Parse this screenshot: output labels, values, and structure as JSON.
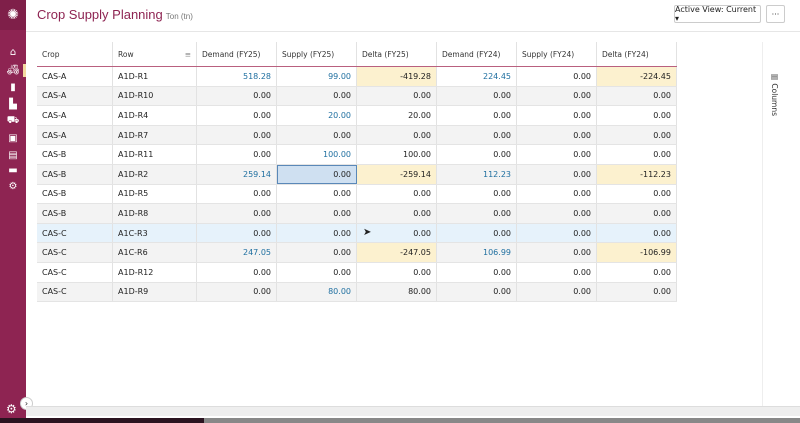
{
  "header": {
    "title": "Crop Supply Planning",
    "unit": "Ton (tn)",
    "view_button": "Active View: Current ▾",
    "more_button": "···"
  },
  "sidebar": {
    "icons": [
      "logo-icon",
      "home-icon",
      "tractor-icon",
      "silo-icon",
      "factory-icon",
      "hand-truck-icon",
      "wallet-icon",
      "clipboard-icon",
      "toolbox-icon",
      "gear-icon"
    ]
  },
  "columns_panel": "▤ Columns",
  "grid": {
    "headers": [
      "Crop",
      "Row",
      "Demand (FY25)",
      "Supply (FY25)",
      "Delta (FY25)",
      "Demand (FY24)",
      "Supply (FY24)",
      "Delta (FY24)"
    ],
    "rows": [
      [
        "CAS-A",
        "A1D-R1",
        "518.28",
        "99.00",
        "-419.28",
        "224.45",
        "0.00",
        "-224.45"
      ],
      [
        "CAS-A",
        "A1D-R10",
        "0.00",
        "0.00",
        "0.00",
        "0.00",
        "0.00",
        "0.00"
      ],
      [
        "CAS-A",
        "A1D-R4",
        "0.00",
        "20.00",
        "20.00",
        "0.00",
        "0.00",
        "0.00"
      ],
      [
        "CAS-A",
        "A1D-R7",
        "0.00",
        "0.00",
        "0.00",
        "0.00",
        "0.00",
        "0.00"
      ],
      [
        "CAS-B",
        "A1D-R11",
        "0.00",
        "100.00",
        "100.00",
        "0.00",
        "0.00",
        "0.00"
      ],
      [
        "CAS-B",
        "A1D-R2",
        "259.14",
        "0.00",
        "-259.14",
        "112.23",
        "0.00",
        "-112.23"
      ],
      [
        "CAS-B",
        "A1D-R5",
        "0.00",
        "0.00",
        "0.00",
        "0.00",
        "0.00",
        "0.00"
      ],
      [
        "CAS-B",
        "A1D-R8",
        "0.00",
        "0.00",
        "0.00",
        "0.00",
        "0.00",
        "0.00"
      ],
      [
        "CAS-C",
        "A1C-R3",
        "0.00",
        "0.00",
        "0.00",
        "0.00",
        "0.00",
        "0.00"
      ],
      [
        "CAS-C",
        "A1C-R6",
        "247.05",
        "0.00",
        "-247.05",
        "106.99",
        "0.00",
        "-106.99"
      ],
      [
        "CAS-C",
        "A1D-R12",
        "0.00",
        "0.00",
        "0.00",
        "0.00",
        "0.00",
        "0.00"
      ],
      [
        "CAS-C",
        "A1D-R9",
        "0.00",
        "80.00",
        "80.00",
        "0.00",
        "0.00",
        "0.00"
      ]
    ],
    "selected_row": 5,
    "selected_col": 3,
    "hovered_row": 8,
    "colors": {
      "accent": "#8e2452",
      "edited": "#1f6fa0",
      "negative_delta": "#fcf1cf",
      "selected": "#cfe0f1"
    }
  }
}
